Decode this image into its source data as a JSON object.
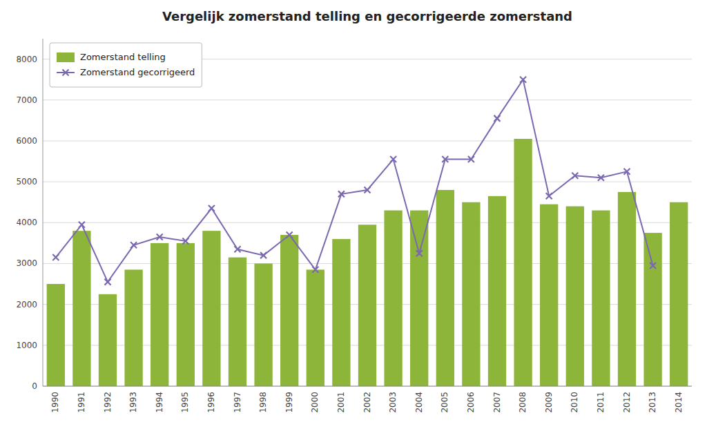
{
  "chart_data": {
    "type": "bar",
    "title": "Vergelijk zomerstand telling en gecorrigeerde zomerstand",
    "categories": [
      "1990",
      "1991",
      "1992",
      "1993",
      "1994",
      "1995",
      "1996",
      "1997",
      "1998",
      "1999",
      "2000",
      "2001",
      "2002",
      "2003",
      "2004",
      "2005",
      "2006",
      "2007",
      "2008",
      "2009",
      "2010",
      "2011",
      "2012",
      "2013",
      "2014"
    ],
    "series": [
      {
        "name": "Zomerstand telling",
        "type": "bar",
        "color": "#8db53a",
        "values": [
          2500,
          3800,
          2250,
          2850,
          3500,
          3500,
          3800,
          3150,
          3000,
          3700,
          2850,
          3600,
          3950,
          4300,
          4300,
          4800,
          4500,
          4650,
          6050,
          4450,
          4400,
          4300,
          4750,
          3750,
          4500
        ]
      },
      {
        "name": "Zomerstand gecorrigeerd",
        "type": "line",
        "color": "#7b68b0",
        "marker": "x",
        "values": [
          3150,
          3950,
          2550,
          3450,
          3650,
          3550,
          4350,
          3350,
          3200,
          3700,
          2850,
          4700,
          4800,
          5550,
          3250,
          5550,
          5550,
          6550,
          7500,
          4650,
          5150,
          5100,
          5250,
          2950,
          null
        ]
      }
    ],
    "ylim": [
      0,
      8500
    ],
    "yticks": [
      0,
      1000,
      2000,
      3000,
      4000,
      5000,
      6000,
      7000,
      8000
    ],
    "grid": true,
    "legend": "upper left"
  }
}
